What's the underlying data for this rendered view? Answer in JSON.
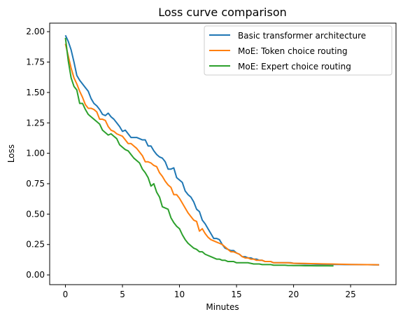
{
  "chart_data": {
    "type": "line",
    "title": "Loss curve comparison",
    "xlabel": "Minutes",
    "ylabel": "Loss",
    "xlim": [
      -1.38,
      28.98
    ],
    "ylim": [
      -0.08,
      2.07
    ],
    "xticks": [
      0,
      5,
      10,
      15,
      20,
      25
    ],
    "yticks": [
      0.0,
      0.25,
      0.5,
      0.75,
      1.0,
      1.25,
      1.5,
      1.75,
      2.0
    ],
    "ytick_labels": [
      "0.00",
      "0.25",
      "0.50",
      "0.75",
      "1.00",
      "1.25",
      "1.50",
      "1.75",
      "2.00"
    ],
    "grid": false,
    "legend_position": "top-right",
    "series": [
      {
        "name": "Basic transformer architecture",
        "color": "#1f77b4",
        "x": [
          0,
          0.25,
          0.5,
          0.75,
          1,
          1.25,
          1.5,
          1.75,
          2,
          2.25,
          2.5,
          2.75,
          3,
          3.25,
          3.5,
          3.75,
          4,
          4.25,
          4.5,
          4.75,
          5,
          5.25,
          5.5,
          5.75,
          6,
          6.25,
          6.5,
          6.75,
          7,
          7.25,
          7.5,
          7.75,
          8,
          8.25,
          8.5,
          8.75,
          9,
          9.25,
          9.5,
          9.75,
          10,
          10.25,
          10.5,
          10.75,
          11,
          11.25,
          11.5,
          11.75,
          12,
          12.25,
          12.5,
          12.75,
          13,
          13.25,
          13.5,
          13.75,
          14,
          14.25,
          14.5,
          14.75,
          15,
          15.25,
          15.5,
          15.75,
          16,
          16.25,
          16.5,
          16.75,
          17,
          17.25,
          17.5,
          17.75,
          18,
          18.25,
          18.5,
          18.75,
          19,
          19.25,
          19.5,
          19.75,
          20,
          20.5,
          21,
          21.5,
          22,
          22.5,
          23,
          23.5,
          24,
          24.5,
          25,
          25.5,
          26,
          26.5,
          27,
          27.5
        ],
        "y": [
          1.97,
          1.92,
          1.85,
          1.75,
          1.64,
          1.6,
          1.57,
          1.54,
          1.51,
          1.45,
          1.41,
          1.39,
          1.36,
          1.32,
          1.31,
          1.33,
          1.3,
          1.28,
          1.25,
          1.22,
          1.18,
          1.19,
          1.16,
          1.13,
          1.13,
          1.13,
          1.12,
          1.11,
          1.11,
          1.06,
          1.06,
          1.02,
          0.99,
          0.97,
          0.96,
          0.93,
          0.87,
          0.87,
          0.88,
          0.8,
          0.78,
          0.76,
          0.69,
          0.66,
          0.64,
          0.6,
          0.54,
          0.52,
          0.45,
          0.42,
          0.38,
          0.34,
          0.3,
          0.3,
          0.29,
          0.25,
          0.22,
          0.21,
          0.2,
          0.2,
          0.18,
          0.17,
          0.15,
          0.15,
          0.14,
          0.14,
          0.13,
          0.13,
          0.12,
          0.12,
          0.11,
          0.11,
          0.11,
          0.1,
          0.1,
          0.1,
          0.1,
          0.1,
          0.1,
          0.1,
          0.095,
          0.093,
          0.09,
          0.09,
          0.088,
          0.087,
          0.087,
          0.086,
          0.086,
          0.085,
          0.085,
          0.085,
          0.084,
          0.084,
          0.083,
          0.083
        ]
      },
      {
        "name": "MoE: Token choice routing",
        "color": "#ff7f0e",
        "x": [
          0,
          0.25,
          0.5,
          0.75,
          1,
          1.25,
          1.5,
          1.75,
          2,
          2.25,
          2.5,
          2.75,
          3,
          3.25,
          3.5,
          3.75,
          4,
          4.25,
          4.5,
          4.75,
          5,
          5.25,
          5.5,
          5.75,
          6,
          6.25,
          6.5,
          6.75,
          7,
          7.25,
          7.5,
          7.75,
          8,
          8.25,
          8.5,
          8.75,
          9,
          9.25,
          9.5,
          9.75,
          10,
          10.25,
          10.5,
          10.75,
          11,
          11.25,
          11.5,
          11.75,
          12,
          12.25,
          12.5,
          12.75,
          13,
          13.25,
          13.5,
          13.75,
          14,
          14.25,
          14.5,
          14.75,
          15,
          15.25,
          15.5,
          15.75,
          16,
          16.25,
          16.5,
          16.75,
          17,
          17.25,
          17.5,
          17.75,
          18,
          18.25,
          18.5,
          18.75,
          19,
          19.5,
          20,
          20.5,
          21,
          21.5,
          22,
          22.5,
          23,
          23.5,
          24,
          24.5,
          25,
          25.5,
          26,
          26.5,
          27,
          27.5
        ],
        "y": [
          1.9,
          1.8,
          1.7,
          1.62,
          1.57,
          1.51,
          1.46,
          1.4,
          1.37,
          1.37,
          1.36,
          1.34,
          1.28,
          1.28,
          1.27,
          1.22,
          1.19,
          1.18,
          1.16,
          1.15,
          1.14,
          1.11,
          1.08,
          1.08,
          1.06,
          1.04,
          1.01,
          0.98,
          0.93,
          0.93,
          0.92,
          0.9,
          0.89,
          0.84,
          0.81,
          0.77,
          0.74,
          0.72,
          0.66,
          0.66,
          0.63,
          0.59,
          0.55,
          0.51,
          0.48,
          0.45,
          0.44,
          0.36,
          0.38,
          0.34,
          0.31,
          0.29,
          0.28,
          0.27,
          0.26,
          0.25,
          0.23,
          0.21,
          0.19,
          0.19,
          0.18,
          0.17,
          0.15,
          0.14,
          0.14,
          0.13,
          0.13,
          0.12,
          0.12,
          0.12,
          0.11,
          0.11,
          0.11,
          0.1,
          0.1,
          0.1,
          0.1,
          0.1,
          0.096,
          0.095,
          0.094,
          0.093,
          0.092,
          0.091,
          0.09,
          0.089,
          0.088,
          0.087,
          0.086,
          0.085,
          0.085,
          0.084,
          0.084,
          0.083
        ]
      },
      {
        "name": "MoE: Expert choice routing",
        "color": "#2ca02c",
        "x": [
          0,
          0.25,
          0.5,
          0.75,
          1,
          1.25,
          1.5,
          1.75,
          2,
          2.25,
          2.5,
          2.75,
          3,
          3.25,
          3.5,
          3.75,
          4,
          4.25,
          4.5,
          4.75,
          5,
          5.25,
          5.5,
          5.75,
          6,
          6.25,
          6.5,
          6.75,
          7,
          7.25,
          7.5,
          7.75,
          8,
          8.25,
          8.5,
          8.75,
          9,
          9.25,
          9.5,
          9.75,
          10,
          10.25,
          10.5,
          10.75,
          11,
          11.25,
          11.5,
          11.75,
          12,
          12.25,
          12.5,
          12.75,
          13,
          13.25,
          13.5,
          13.75,
          14,
          14.25,
          14.5,
          14.75,
          15,
          15.25,
          15.5,
          15.75,
          16,
          16.25,
          16.5,
          16.75,
          17,
          17.25,
          17.5,
          17.75,
          18,
          18.25,
          18.5,
          18.75,
          19,
          19.25,
          19.5,
          19.75,
          20,
          20.5,
          21,
          21.5,
          22,
          22.5,
          23,
          23.5
        ],
        "y": [
          1.95,
          1.76,
          1.62,
          1.55,
          1.52,
          1.41,
          1.41,
          1.36,
          1.32,
          1.3,
          1.28,
          1.26,
          1.24,
          1.19,
          1.17,
          1.15,
          1.16,
          1.14,
          1.12,
          1.07,
          1.05,
          1.03,
          1.02,
          0.99,
          0.96,
          0.94,
          0.92,
          0.87,
          0.84,
          0.8,
          0.73,
          0.75,
          0.68,
          0.64,
          0.56,
          0.55,
          0.54,
          0.47,
          0.43,
          0.4,
          0.38,
          0.33,
          0.29,
          0.26,
          0.24,
          0.22,
          0.21,
          0.19,
          0.19,
          0.17,
          0.16,
          0.15,
          0.14,
          0.13,
          0.13,
          0.12,
          0.12,
          0.11,
          0.11,
          0.11,
          0.1,
          0.1,
          0.1,
          0.1,
          0.1,
          0.095,
          0.09,
          0.09,
          0.09,
          0.085,
          0.085,
          0.085,
          0.085,
          0.08,
          0.08,
          0.08,
          0.08,
          0.08,
          0.078,
          0.078,
          0.077,
          0.077,
          0.076,
          0.076,
          0.075,
          0.075,
          0.075,
          0.074
        ]
      }
    ]
  }
}
